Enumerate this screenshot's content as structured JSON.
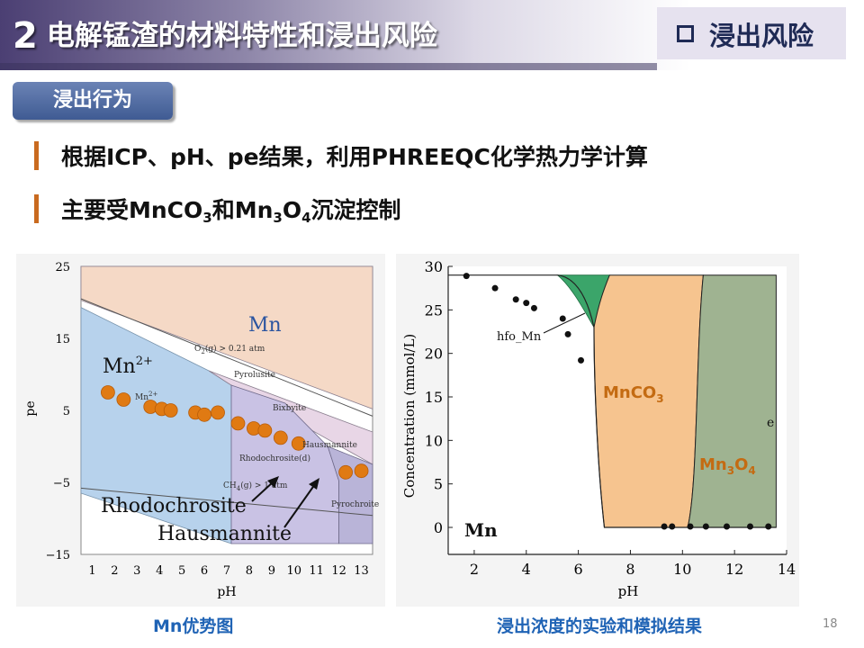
{
  "header": {
    "number": "2",
    "title": "电解锰渣的材料特性和浸出风险",
    "section": "浸出风险"
  },
  "tag": "浸出行为",
  "bullets": {
    "b1": "根据ICP、pH、pe结果，利用PHREEQC化学热力学计算",
    "b2_prefix": "主要受MnCO",
    "b2_sub1": "3",
    "b2_mid": "和Mn",
    "b2_sub2": "3",
    "b2_mid2": "O",
    "b2_sub3": "4",
    "b2_suffix": "沉淀控制"
  },
  "left_figure": {
    "ylabel": "pe",
    "xlabel": "pH",
    "yticks": [
      "25",
      "15",
      "5",
      "−5",
      "−15"
    ],
    "xticks": [
      "1",
      "2",
      "3",
      "4",
      "5",
      "6",
      "7",
      "8",
      "9",
      "10",
      "11",
      "12",
      "13"
    ],
    "labels": {
      "mn": "Mn",
      "mn2plus": "Mn",
      "mn2plus_sup": "2+",
      "mn2plus_small": "Mn",
      "mn2plus_small_sup": "2+",
      "o2": "O",
      "o2_rest": "(g) > 0.21 atm",
      "o2_sub": "2",
      "pyrolusite": "Pyrolusite",
      "bixbyite": "Bixbyite",
      "hausmannite_small": "Hausmannite",
      "rhodochrosite_small": "Rhodochrosite(d)",
      "ch4": "CH",
      "ch4_sub": "4",
      "ch4_rest": "(g) > 1 atm",
      "pyrochroite": "Pyrochroite",
      "rhodochrosite": "Rhodochrosite",
      "hausmannite": "Hausmannite"
    },
    "points": [
      [
        1.7,
        7.5
      ],
      [
        2.4,
        6.5
      ],
      [
        3.6,
        5.5
      ],
      [
        4.1,
        5.2
      ],
      [
        4.5,
        5.0
      ],
      [
        5.6,
        4.7
      ],
      [
        6.0,
        4.4
      ],
      [
        6.6,
        4.7
      ],
      [
        7.5,
        3.2
      ],
      [
        8.2,
        2.5
      ],
      [
        8.7,
        2.2
      ],
      [
        9.4,
        1.2
      ],
      [
        10.2,
        0.4
      ],
      [
        12.3,
        -3.6
      ],
      [
        13.0,
        -3.4
      ]
    ],
    "colors": {
      "mn_region": "#f5d9c6",
      "mn2_region": "#b7d2ec",
      "hausmannite_region": "#c9c2e4",
      "pyrochroite_region": "#b9b4d8",
      "point": "#e07a13"
    }
  },
  "right_figure": {
    "ylabel": "Concentration (mmol/L)",
    "xlabel": "pH",
    "yticks": [
      "30",
      "25",
      "20",
      "15",
      "10",
      "5",
      "0"
    ],
    "xticks": [
      "2",
      "4",
      "6",
      "8",
      "10",
      "12",
      "14"
    ],
    "hfo_label": "hfo_Mn",
    "mn_label": "Mn",
    "mnco3_label": "MnCO",
    "mnco3_sub": "3",
    "mn3o4_label": "Mn",
    "mn3o4_sub1": "3",
    "mn3o4_mid": "O",
    "mn3o4_sub2": "4",
    "partial_legend": "e",
    "points": [
      [
        1.7,
        28.9
      ],
      [
        2.8,
        27.5
      ],
      [
        3.6,
        26.2
      ],
      [
        4.0,
        25.8
      ],
      [
        4.3,
        25.2
      ],
      [
        5.4,
        24.0
      ],
      [
        5.6,
        22.2
      ],
      [
        6.1,
        19.2
      ],
      [
        9.3,
        0.1
      ],
      [
        9.6,
        0.1
      ],
      [
        10.3,
        0.1
      ],
      [
        10.9,
        0.1
      ],
      [
        11.7,
        0.1
      ],
      [
        12.6,
        0.1
      ],
      [
        13.3,
        0.1
      ]
    ],
    "colors": {
      "mnco3_region": "#f6c48f",
      "mn3o4_region": "#9fb391",
      "hfo_region": "#3ba56a",
      "point": "#111111",
      "label_color": "#c46b12"
    }
  },
  "captions": {
    "left": "Mn优势图",
    "right": "浸出浓度的实验和模拟结果"
  },
  "page_number": "18"
}
